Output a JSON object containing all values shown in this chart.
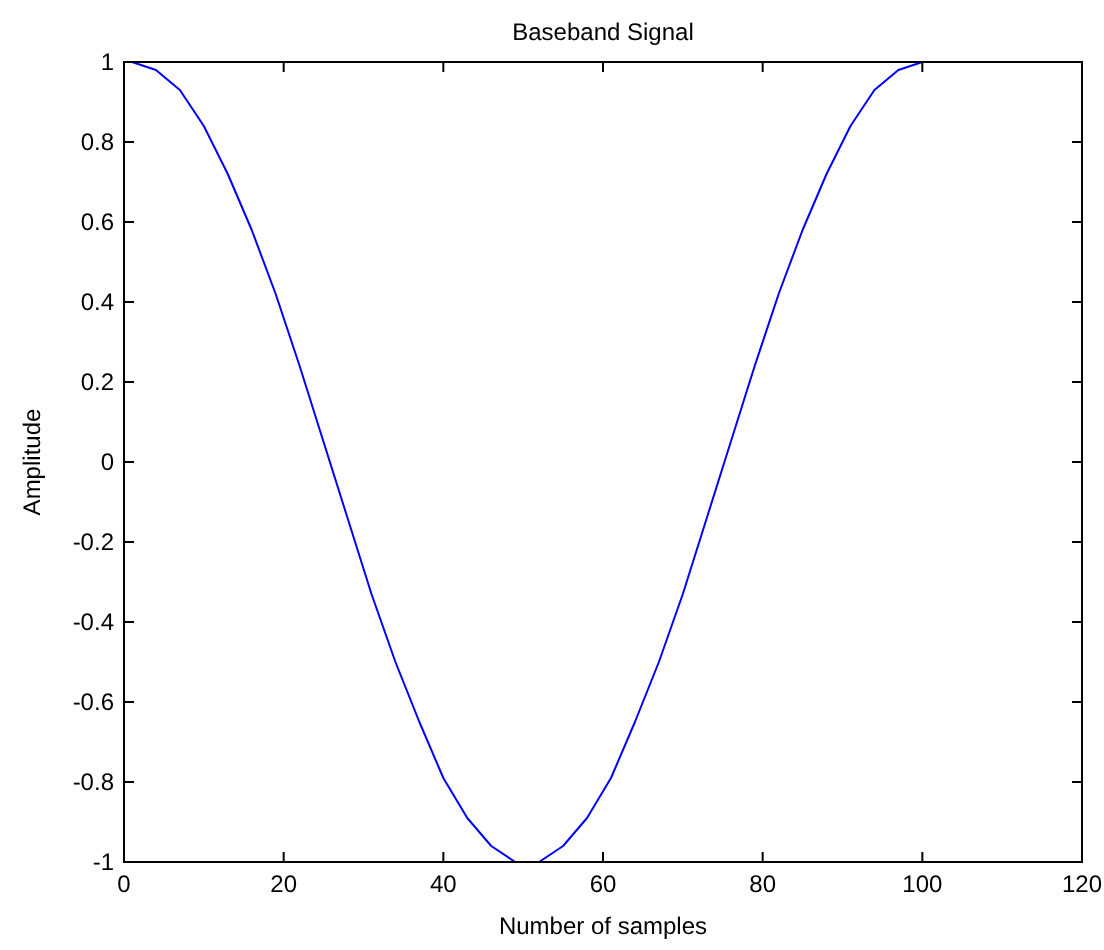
{
  "chart_data": {
    "type": "line",
    "title": "Baseband Signal",
    "xlabel": "Number of samples",
    "ylabel": "Amplitude",
    "x": [
      1,
      4,
      7,
      10,
      13,
      16,
      19,
      22,
      25,
      28,
      31,
      34,
      37,
      40,
      43,
      46,
      49,
      52,
      55,
      58,
      61,
      64,
      67,
      70,
      73,
      76,
      79,
      82,
      85,
      88,
      91,
      94,
      97,
      100
    ],
    "series": [
      {
        "color": "#0000ff",
        "values": [
          1,
          0.98,
          0.93,
          0.84,
          0.72,
          0.58,
          0.42,
          0.24,
          0.05,
          -0.14,
          -0.33,
          -0.5,
          -0.65,
          -0.79,
          -0.89,
          -0.96,
          -1,
          -1,
          -0.96,
          -0.89,
          -0.79,
          -0.65,
          -0.5,
          -0.33,
          -0.14,
          0.05,
          0.24,
          0.42,
          0.58,
          0.72,
          0.84,
          0.93,
          0.98,
          1
        ]
      }
    ],
    "xlim": [
      0,
      120
    ],
    "xticks": [
      0,
      20,
      40,
      60,
      80,
      100,
      120
    ],
    "ylim": [
      -1,
      1
    ],
    "yticks": [
      -1,
      -0.8,
      -0.6,
      -0.4,
      -0.2,
      0,
      0.2,
      0.4,
      0.6,
      0.8,
      1
    ],
    "grid": false,
    "marker": "none",
    "line_style": "solid"
  }
}
